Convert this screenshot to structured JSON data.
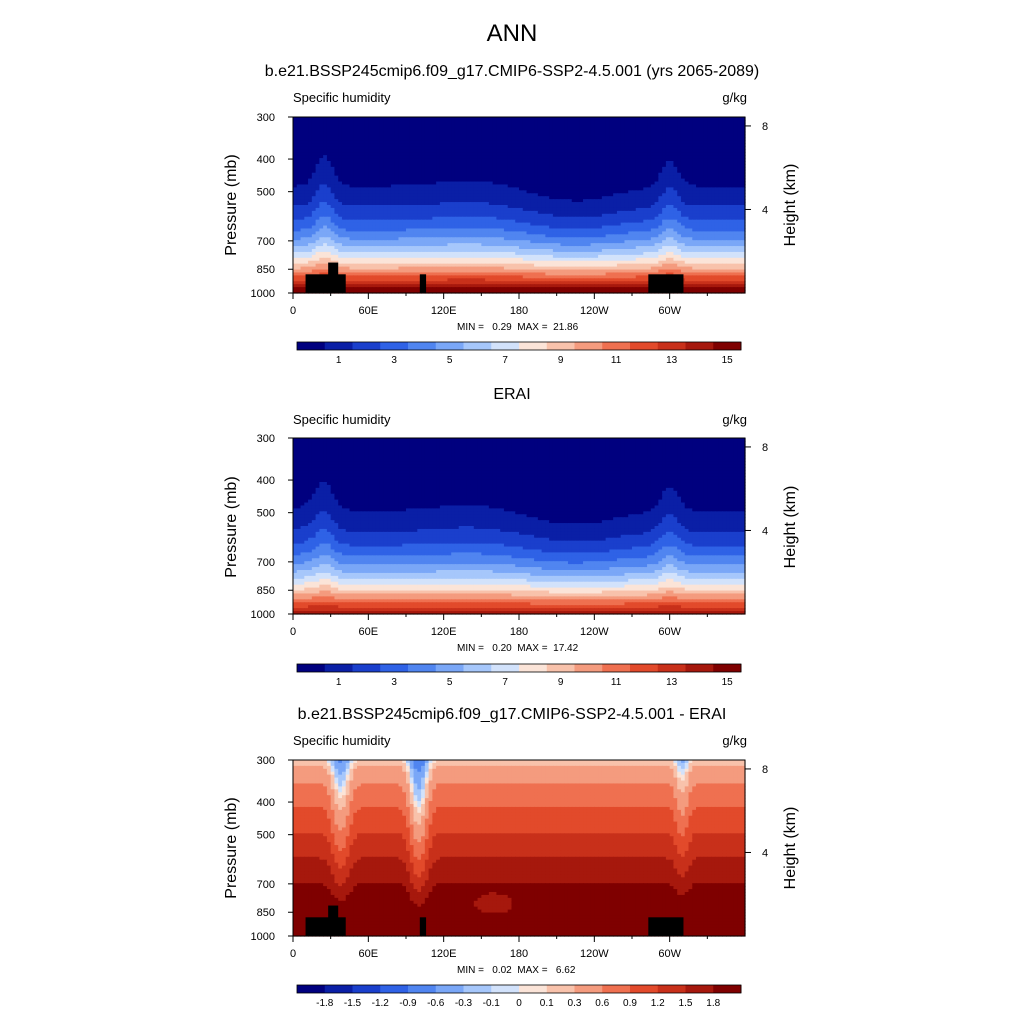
{
  "page": {
    "title": "ANN"
  },
  "colors": {
    "sequential": [
      "#00007f",
      "#0a1fa6",
      "#1a3fcc",
      "#2f62e6",
      "#5085f0",
      "#7aa7f7",
      "#a6c7fb",
      "#d2e2fb",
      "#fbe4d8",
      "#f8c2ab",
      "#f49b7e",
      "#ef7050",
      "#e24a2b",
      "#c8301a",
      "#a6180d",
      "#7f0000"
    ],
    "diverging": [
      "#00007f",
      "#0a1fa6",
      "#1a3fcc",
      "#2f62e6",
      "#5085f0",
      "#7aa7f7",
      "#a6c7fb",
      "#d2e2fb",
      "#fbe4d8",
      "#f8c2ab",
      "#f49b7e",
      "#ef7050",
      "#e24a2b",
      "#c8301a",
      "#a6180d",
      "#7f0000"
    ],
    "land_mask": "#000000"
  },
  "chart_data": [
    {
      "type": "heatmap",
      "title": "b.e21.BSSP245cmip6.f09_g17.CMIP6-SSP2-4.5.001 (yrs 2065-2089)",
      "left_label": "Specific humidity",
      "units": "g/kg",
      "ylabel": "Pressure (mb)",
      "ylabel_right": "Height (km)",
      "x_ticks": [
        "0",
        "60E",
        "120E",
        "180",
        "120W",
        "60W"
      ],
      "x_tick_values": [
        0,
        60,
        120,
        180,
        240,
        300
      ],
      "xlim": [
        0,
        360
      ],
      "y_ticks": [
        "300",
        "400",
        "500",
        "700",
        "850",
        "1000"
      ],
      "y_tick_values": [
        300,
        400,
        500,
        700,
        850,
        1000
      ],
      "ylim": [
        300,
        1000
      ],
      "y_scale": "log",
      "right_ticks": [
        "8",
        "4"
      ],
      "right_tick_values": [
        8,
        4
      ],
      "min_max": "MIN =   0.29  MAX =  21.86",
      "colorbar_labels": [
        "1",
        "3",
        "5",
        "7",
        "9",
        "11",
        "13",
        "15"
      ],
      "colorbar_levels": [
        0,
        1,
        2,
        3,
        4,
        5,
        6,
        7,
        8,
        9,
        10,
        11,
        12,
        13,
        14,
        15,
        16
      ],
      "surface_humidity": 17,
      "land_mask": true
    },
    {
      "type": "heatmap",
      "title": "ERAI",
      "left_label": "Specific humidity",
      "units": "g/kg",
      "ylabel": "Pressure (mb)",
      "ylabel_right": "Height (km)",
      "x_ticks": [
        "0",
        "60E",
        "120E",
        "180",
        "120W",
        "60W"
      ],
      "x_tick_values": [
        0,
        60,
        120,
        180,
        240,
        300
      ],
      "xlim": [
        0,
        360
      ],
      "y_ticks": [
        "300",
        "400",
        "500",
        "700",
        "850",
        "1000"
      ],
      "y_tick_values": [
        300,
        400,
        500,
        700,
        850,
        1000
      ],
      "ylim": [
        300,
        1000
      ],
      "y_scale": "log",
      "right_ticks": [
        "8",
        "4"
      ],
      "right_tick_values": [
        8,
        4
      ],
      "min_max": "MIN =   0.20  MAX =  17.42",
      "colorbar_labels": [
        "1",
        "3",
        "5",
        "7",
        "9",
        "11",
        "13",
        "15"
      ],
      "colorbar_levels": [
        0,
        1,
        2,
        3,
        4,
        5,
        6,
        7,
        8,
        9,
        10,
        11,
        12,
        13,
        14,
        15,
        16
      ],
      "surface_humidity": 15,
      "land_mask": false
    },
    {
      "type": "heatmap",
      "title": "b.e21.BSSP245cmip6.f09_g17.CMIP6-SSP2-4.5.001 - ERAI",
      "left_label": "Specific humidity",
      "units": "g/kg",
      "ylabel": "Pressure (mb)",
      "ylabel_right": "Height (km)",
      "x_ticks": [
        "0",
        "60E",
        "120E",
        "180",
        "120W",
        "60W"
      ],
      "x_tick_values": [
        0,
        60,
        120,
        180,
        240,
        300
      ],
      "xlim": [
        0,
        360
      ],
      "y_ticks": [
        "300",
        "400",
        "500",
        "700",
        "850",
        "1000"
      ],
      "y_tick_values": [
        300,
        400,
        500,
        700,
        850,
        1000
      ],
      "ylim": [
        300,
        1000
      ],
      "y_scale": "log",
      "right_ticks": [
        "8",
        "4"
      ],
      "right_tick_values": [
        8,
        4
      ],
      "min_max": "MIN =   0.02  MAX =   6.62",
      "colorbar_labels": [
        "-1.8",
        "-1.5",
        "-1.2",
        "-0.9",
        "-0.6",
        "-0.3",
        "-0.1",
        "0",
        "0.1",
        "0.3",
        "0.6",
        "0.9",
        "1.2",
        "1.5",
        "1.8"
      ],
      "colorbar_levels": [
        -2.1,
        -1.8,
        -1.5,
        -1.2,
        -0.9,
        -0.6,
        -0.3,
        -0.1,
        0,
        0.1,
        0.3,
        0.6,
        0.9,
        1.2,
        1.5,
        1.8,
        2.1
      ],
      "land_mask": true
    }
  ]
}
